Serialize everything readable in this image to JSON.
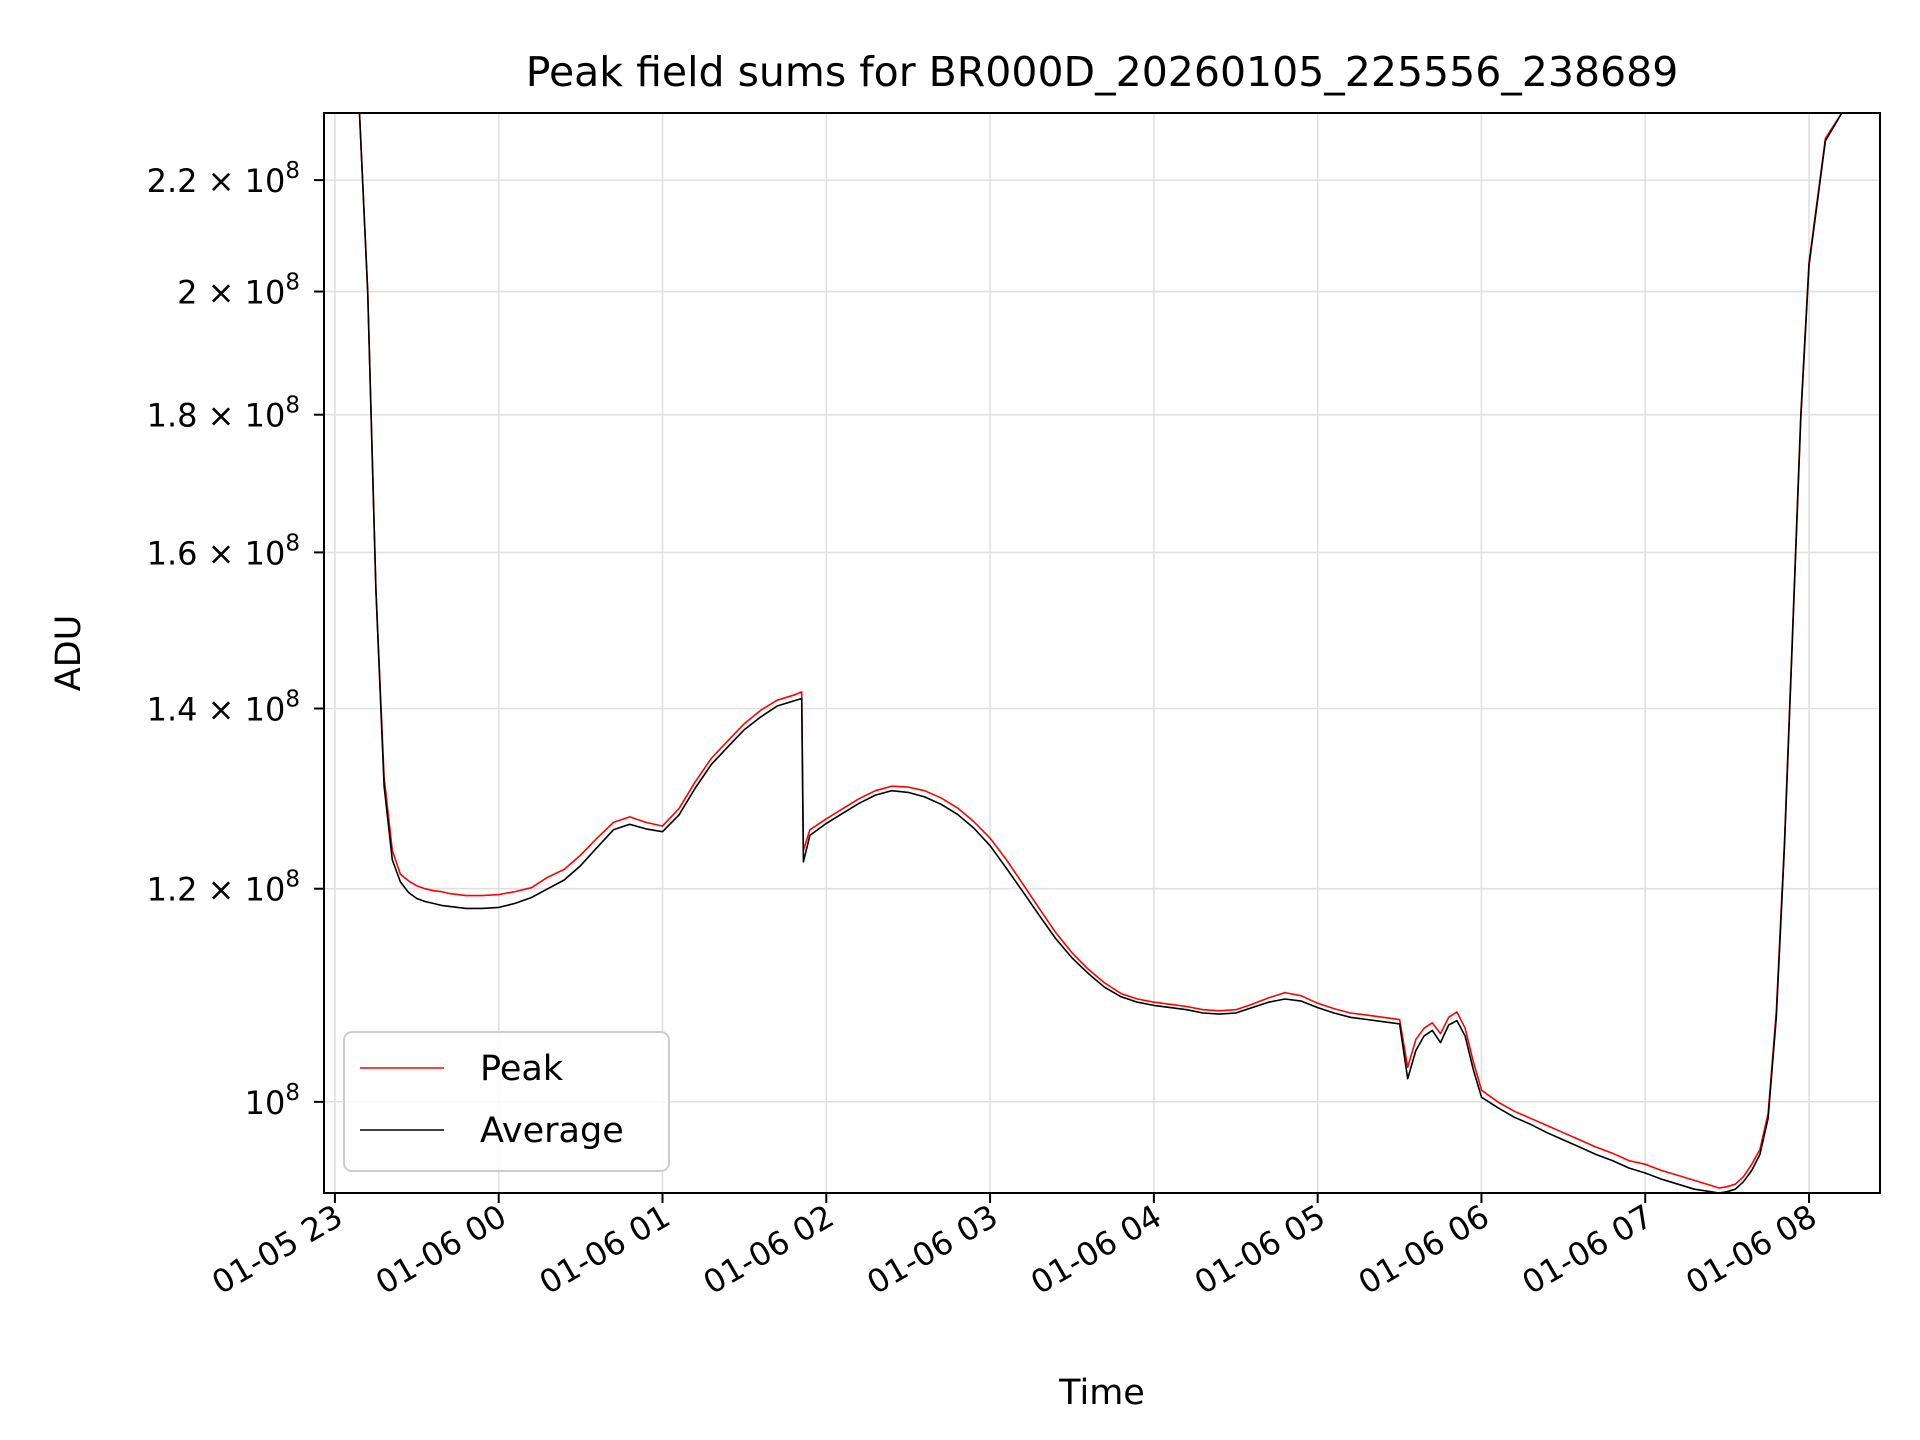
{
  "chart_data": {
    "type": "line",
    "title": "Peak field sums for BR000D_20260105_225556_238689",
    "xlabel": "Time",
    "ylabel": "ADU",
    "x_ticks": [
      "01-05 23",
      "01-06 00",
      "01-06 01",
      "01-06 02",
      "01-06 03",
      "01-06 04",
      "01-06 05",
      "01-06 06",
      "01-06 07",
      "01-06 08"
    ],
    "x_tick_hours": [
      0,
      1,
      2,
      3,
      4,
      5,
      6,
      7,
      8,
      9
    ],
    "y_ticks": [
      {
        "value": 100000000,
        "mantissa": "",
        "exp": "8"
      },
      {
        "value": 120000000,
        "mantissa": "1.2",
        "exp": "8"
      },
      {
        "value": 140000000,
        "mantissa": "1.4",
        "exp": "8"
      },
      {
        "value": 160000000,
        "mantissa": "1.6",
        "exp": "8"
      },
      {
        "value": 180000000,
        "mantissa": "1.8",
        "exp": "8"
      },
      {
        "value": 200000000,
        "mantissa": "2",
        "exp": "8"
      },
      {
        "value": 220000000,
        "mantissa": "2.2",
        "exp": "8"
      }
    ],
    "x_unit": "hours since 2026-01-05 23:00",
    "x_range": [
      "2026-01-05 22:56",
      "2026-01-06 08:26"
    ],
    "ylim": [
      92500000,
      233000000
    ],
    "y_scale": "log",
    "grid": true,
    "legend_position": "lower-left",
    "series": [
      {
        "name": "Peak",
        "color": "#ff0000",
        "x": [
          -0.06,
          0.0,
          0.15,
          0.2,
          0.25,
          0.3,
          0.35,
          0.4,
          0.45,
          0.5,
          0.55,
          0.6,
          0.65,
          0.7,
          0.75,
          0.8,
          0.9,
          1.0,
          1.1,
          1.2,
          1.3,
          1.4,
          1.5,
          1.6,
          1.7,
          1.8,
          1.9,
          2.0,
          2.1,
          2.2,
          2.3,
          2.4,
          2.5,
          2.6,
          2.7,
          2.8,
          2.85,
          2.86,
          2.9,
          3.0,
          3.1,
          3.2,
          3.3,
          3.4,
          3.5,
          3.6,
          3.7,
          3.8,
          3.9,
          4.0,
          4.1,
          4.2,
          4.3,
          4.4,
          4.5,
          4.6,
          4.7,
          4.8,
          4.9,
          5.0,
          5.1,
          5.2,
          5.3,
          5.4,
          5.5,
          5.6,
          5.7,
          5.8,
          5.9,
          6.0,
          6.1,
          6.2,
          6.3,
          6.4,
          6.5,
          6.55,
          6.6,
          6.65,
          6.7,
          6.75,
          6.8,
          6.85,
          6.9,
          6.95,
          7.0,
          7.1,
          7.2,
          7.3,
          7.4,
          7.5,
          7.6,
          7.7,
          7.8,
          7.9,
          8.0,
          8.1,
          8.2,
          8.3,
          8.4,
          8.45,
          8.5,
          8.55,
          8.6,
          8.65,
          8.7,
          8.75,
          8.8,
          8.85,
          8.9,
          8.95,
          9.0,
          9.1,
          9.2,
          9.43
        ],
        "y": [
          233000000,
          233000000,
          233000000,
          200000000,
          155000000,
          132000000,
          124000000,
          121500000,
          120800000,
          120300000,
          120000000,
          119800000,
          119700000,
          119500000,
          119400000,
          119300000,
          119300000,
          119400000,
          119700000,
          120100000,
          121200000,
          122000000,
          123500000,
          125300000,
          127000000,
          127600000,
          127000000,
          126600000,
          128500000,
          131500000,
          134200000,
          136200000,
          138200000,
          139800000,
          141000000,
          141600000,
          142000000,
          124000000,
          126200000,
          127400000,
          128500000,
          129600000,
          130500000,
          131000000,
          130900000,
          130500000,
          129700000,
          128600000,
          127100000,
          125300000,
          123000000,
          120500000,
          118000000,
          115600000,
          113600000,
          112000000,
          110700000,
          109700000,
          109200000,
          108900000,
          108700000,
          108500000,
          108200000,
          108100000,
          108200000,
          108700000,
          109300000,
          109800000,
          109500000,
          108800000,
          108300000,
          107900000,
          107700000,
          107500000,
          107300000,
          103000000,
          105500000,
          106500000,
          107000000,
          106000000,
          107500000,
          108000000,
          106500000,
          103500000,
          101000000,
          100000000,
          99200000,
          98600000,
          98000000,
          97400000,
          96800000,
          96200000,
          95700000,
          95100000,
          94800000,
          94300000,
          93900000,
          93500000,
          93100000,
          92900000,
          93000000,
          93200000,
          93800000,
          94800000,
          96000000,
          99000000,
          108000000,
          125000000,
          150000000,
          180000000,
          205000000,
          228000000,
          233000000,
          233000000
        ]
      },
      {
        "name": "Average",
        "color": "#000000",
        "x": [
          -0.06,
          0.0,
          0.15,
          0.2,
          0.25,
          0.3,
          0.35,
          0.4,
          0.45,
          0.5,
          0.55,
          0.6,
          0.65,
          0.7,
          0.75,
          0.8,
          0.9,
          1.0,
          1.1,
          1.2,
          1.3,
          1.4,
          1.5,
          1.6,
          1.7,
          1.8,
          1.9,
          2.0,
          2.1,
          2.2,
          2.3,
          2.4,
          2.5,
          2.6,
          2.7,
          2.8,
          2.85,
          2.86,
          2.9,
          3.0,
          3.1,
          3.2,
          3.3,
          3.4,
          3.5,
          3.6,
          3.7,
          3.8,
          3.9,
          4.0,
          4.1,
          4.2,
          4.3,
          4.4,
          4.5,
          4.6,
          4.7,
          4.8,
          4.9,
          5.0,
          5.1,
          5.2,
          5.3,
          5.4,
          5.5,
          5.6,
          5.7,
          5.8,
          5.9,
          6.0,
          6.1,
          6.2,
          6.3,
          6.4,
          6.5,
          6.55,
          6.6,
          6.65,
          6.7,
          6.75,
          6.8,
          6.85,
          6.9,
          6.95,
          7.0,
          7.1,
          7.2,
          7.3,
          7.4,
          7.5,
          7.6,
          7.7,
          7.8,
          7.9,
          8.0,
          8.1,
          8.2,
          8.3,
          8.4,
          8.45,
          8.5,
          8.55,
          8.6,
          8.65,
          8.7,
          8.75,
          8.8,
          8.85,
          8.9,
          8.95,
          9.0,
          9.1,
          9.2,
          9.43
        ],
        "y": [
          233000000,
          233000000,
          233000000,
          200000000,
          155000000,
          131000000,
          123000000,
          120700000,
          119600000,
          119000000,
          118700000,
          118500000,
          118300000,
          118200000,
          118100000,
          118000000,
          118000000,
          118100000,
          118500000,
          119100000,
          120000000,
          120900000,
          122400000,
          124300000,
          126200000,
          126800000,
          126300000,
          126000000,
          127800000,
          130800000,
          133500000,
          135500000,
          137500000,
          139000000,
          140300000,
          140900000,
          141200000,
          122800000,
          125600000,
          126900000,
          128000000,
          129100000,
          130000000,
          130500000,
          130300000,
          129800000,
          129000000,
          127900000,
          126400000,
          124500000,
          122100000,
          119700000,
          117300000,
          115000000,
          113100000,
          111600000,
          110300000,
          109400000,
          108900000,
          108600000,
          108400000,
          108200000,
          107900000,
          107800000,
          107900000,
          108400000,
          108900000,
          109200000,
          109000000,
          108400000,
          107900000,
          107500000,
          107300000,
          107100000,
          106900000,
          102000000,
          104500000,
          105800000,
          106300000,
          105200000,
          106800000,
          107200000,
          105800000,
          102800000,
          100400000,
          99500000,
          98700000,
          98100000,
          97400000,
          96800000,
          96200000,
          95600000,
          95100000,
          94500000,
          94100000,
          93600000,
          93200000,
          92800000,
          92600000,
          92500000,
          92600000,
          92800000,
          93400000,
          94300000,
          95600000,
          98600000,
          107500000,
          124500000,
          149500000,
          179500000,
          204500000,
          227500000,
          233000000,
          233000000
        ]
      }
    ]
  }
}
